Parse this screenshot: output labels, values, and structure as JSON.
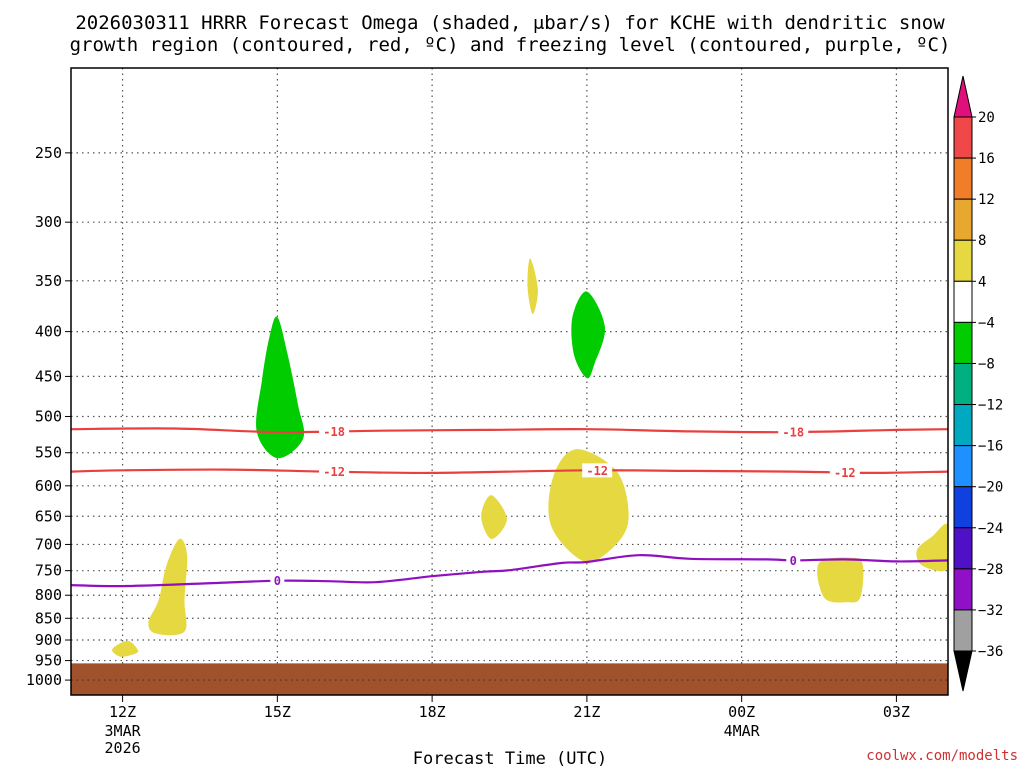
{
  "chart_data": {
    "type": "heatmap",
    "title_line1": "2026030311 HRRR Forecast Omega (shaded, μbar/s) for KCHE with dendritic snow",
    "title_line2": "growth region (contoured, red, ºC) and freezing level (contoured, purple, ºC)",
    "xlabel": "Forecast Time (UTC)",
    "credit": "coolwx.com/modelts",
    "x_ticks": [
      {
        "hour": 12,
        "label": "12Z",
        "sub": [
          "3MAR",
          "2026"
        ]
      },
      {
        "hour": 15,
        "label": "15Z",
        "sub": []
      },
      {
        "hour": 18,
        "label": "18Z",
        "sub": []
      },
      {
        "hour": 21,
        "label": "21Z",
        "sub": []
      },
      {
        "hour": 24,
        "label": "00Z",
        "sub": [
          "4MAR"
        ]
      },
      {
        "hour": 27,
        "label": "03Z",
        "sub": []
      }
    ],
    "x_range": [
      11,
      28
    ],
    "y_ticks": [
      250,
      300,
      350,
      400,
      450,
      500,
      550,
      600,
      650,
      700,
      750,
      800,
      850,
      900,
      950,
      1000
    ],
    "y_range": [
      200,
      1040
    ],
    "y_scale": "log-pressure",
    "grid": true,
    "ground": {
      "color": "#a0522d",
      "top_pressure": 957
    },
    "colorbar": {
      "labels": [
        "20",
        "16",
        "12",
        "8",
        "4",
        "−4",
        "−8",
        "−12",
        "−16",
        "−20",
        "−24",
        "−28",
        "−32",
        "−36"
      ],
      "colors": [
        "#f04848",
        "#f07e28",
        "#e8a830",
        "#e6d840",
        "#ffffff",
        "#00cc00",
        "#00b080",
        "#00a8c0",
        "#1e90ff",
        "#1040e0",
        "#5010c8",
        "#9010c8",
        "#a0a0a0"
      ],
      "top_arrow_color": "#e0107a",
      "bottom_arrow_color": "#000000"
    },
    "omega_regions": [
      {
        "level": "-8",
        "color": "#00cc00",
        "points": [
          [
            15.0,
            385
          ],
          [
            15.2,
            425
          ],
          [
            15.4,
            485
          ],
          [
            15.5,
            530
          ],
          [
            15.0,
            558
          ],
          [
            14.6,
            520
          ],
          [
            14.7,
            455
          ],
          [
            14.85,
            405
          ]
        ]
      },
      {
        "level": "-8",
        "color": "#00cc00",
        "points": [
          [
            21.0,
            360
          ],
          [
            21.35,
            395
          ],
          [
            21.15,
            435
          ],
          [
            21.0,
            452
          ],
          [
            20.75,
            425
          ],
          [
            20.72,
            385
          ]
        ]
      },
      {
        "level": "4",
        "color": "#e6d840",
        "points": [
          [
            19.9,
            330
          ],
          [
            20.05,
            358
          ],
          [
            19.95,
            382
          ],
          [
            19.85,
            356
          ]
        ]
      },
      {
        "level": "4",
        "color": "#e6d840",
        "points": [
          [
            19.15,
            615
          ],
          [
            19.45,
            655
          ],
          [
            19.15,
            690
          ],
          [
            18.95,
            650
          ]
        ]
      },
      {
        "level": "4",
        "color": "#e6d840",
        "points": [
          [
            20.8,
            545
          ],
          [
            21.6,
            580
          ],
          [
            21.8,
            660
          ],
          [
            21.4,
            715
          ],
          [
            20.9,
            730
          ],
          [
            20.3,
            665
          ],
          [
            20.35,
            585
          ]
        ]
      },
      {
        "level": "4",
        "color": "#e6d840",
        "points": [
          [
            13.1,
            690
          ],
          [
            13.25,
            720
          ],
          [
            13.2,
            810
          ],
          [
            13.2,
            880
          ],
          [
            12.65,
            885
          ],
          [
            12.5,
            860
          ],
          [
            12.7,
            810
          ],
          [
            12.85,
            740
          ]
        ]
      },
      {
        "level": "4",
        "color": "#e6d840",
        "points": [
          [
            12.1,
            902
          ],
          [
            12.3,
            925
          ],
          [
            12.2,
            935
          ],
          [
            11.95,
            940
          ],
          [
            11.8,
            922
          ]
        ]
      },
      {
        "level": "4",
        "color": "#e6d840",
        "points": [
          [
            26.15,
            725
          ],
          [
            26.35,
            740
          ],
          [
            26.3,
            805
          ],
          [
            26.05,
            815
          ],
          [
            25.6,
            805
          ],
          [
            25.5,
            735
          ]
        ]
      },
      {
        "level": "4",
        "color": "#e6d840",
        "points": [
          [
            28.0,
            665
          ],
          [
            28.0,
            745
          ],
          [
            27.5,
            740
          ],
          [
            27.4,
            710
          ],
          [
            27.7,
            685
          ]
        ]
      }
    ],
    "contours": [
      {
        "label": "-18",
        "color": "#e84040",
        "label_hours": [
          16.1,
          25.0
        ],
        "points": [
          [
            11,
            517
          ],
          [
            13,
            516
          ],
          [
            15,
            521
          ],
          [
            17,
            519
          ],
          [
            19,
            518
          ],
          [
            21,
            517
          ],
          [
            23,
            520
          ],
          [
            25,
            521
          ],
          [
            27,
            518
          ],
          [
            28,
            517
          ]
        ]
      },
      {
        "label": "-12",
        "color": "#e84040",
        "label_hours": [
          16.1,
          21.2,
          26.0
        ],
        "points": [
          [
            11,
            578
          ],
          [
            12,
            576
          ],
          [
            14,
            575
          ],
          [
            16,
            578
          ],
          [
            18,
            580
          ],
          [
            21,
            576
          ],
          [
            23,
            577
          ],
          [
            25,
            578
          ],
          [
            26.5,
            580
          ],
          [
            28,
            578
          ]
        ]
      },
      {
        "label": "0",
        "color": "#9010c0",
        "label_hours": [
          15.0,
          25.0
        ],
        "points": [
          [
            11,
            779
          ],
          [
            12,
            781
          ],
          [
            13.5,
            776
          ],
          [
            15,
            770
          ],
          [
            16,
            771
          ],
          [
            16.9,
            773
          ],
          [
            18,
            761
          ],
          [
            19,
            752
          ],
          [
            19.5,
            749
          ],
          [
            20.5,
            735
          ],
          [
            21,
            733
          ],
          [
            22,
            720
          ],
          [
            23,
            727
          ],
          [
            24.5,
            728
          ],
          [
            25,
            730
          ],
          [
            26,
            728
          ],
          [
            27,
            732
          ],
          [
            28,
            730
          ]
        ]
      }
    ]
  }
}
